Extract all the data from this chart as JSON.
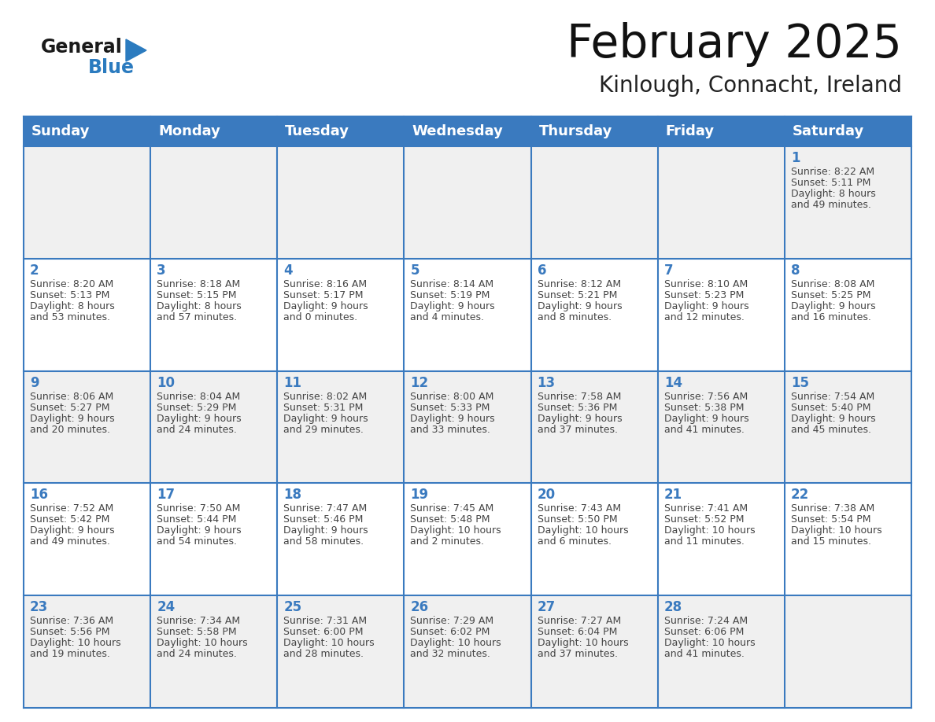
{
  "title": "February 2025",
  "subtitle": "Kinlough, Connacht, Ireland",
  "header_color": "#3a7abf",
  "header_text_color": "#ffffff",
  "cell_bg_white": "#ffffff",
  "cell_bg_gray": "#f0f0f0",
  "border_color": "#3a7abf",
  "text_color": "#444444",
  "day_num_color": "#3a7abf",
  "days_of_week": [
    "Sunday",
    "Monday",
    "Tuesday",
    "Wednesday",
    "Thursday",
    "Friday",
    "Saturday"
  ],
  "weeks": [
    [
      {
        "day": "",
        "info": ""
      },
      {
        "day": "",
        "info": ""
      },
      {
        "day": "",
        "info": ""
      },
      {
        "day": "",
        "info": ""
      },
      {
        "day": "",
        "info": ""
      },
      {
        "day": "",
        "info": ""
      },
      {
        "day": "1",
        "info": "Sunrise: 8:22 AM\nSunset: 5:11 PM\nDaylight: 8 hours\nand 49 minutes."
      }
    ],
    [
      {
        "day": "2",
        "info": "Sunrise: 8:20 AM\nSunset: 5:13 PM\nDaylight: 8 hours\nand 53 minutes."
      },
      {
        "day": "3",
        "info": "Sunrise: 8:18 AM\nSunset: 5:15 PM\nDaylight: 8 hours\nand 57 minutes."
      },
      {
        "day": "4",
        "info": "Sunrise: 8:16 AM\nSunset: 5:17 PM\nDaylight: 9 hours\nand 0 minutes."
      },
      {
        "day": "5",
        "info": "Sunrise: 8:14 AM\nSunset: 5:19 PM\nDaylight: 9 hours\nand 4 minutes."
      },
      {
        "day": "6",
        "info": "Sunrise: 8:12 AM\nSunset: 5:21 PM\nDaylight: 9 hours\nand 8 minutes."
      },
      {
        "day": "7",
        "info": "Sunrise: 8:10 AM\nSunset: 5:23 PM\nDaylight: 9 hours\nand 12 minutes."
      },
      {
        "day": "8",
        "info": "Sunrise: 8:08 AM\nSunset: 5:25 PM\nDaylight: 9 hours\nand 16 minutes."
      }
    ],
    [
      {
        "day": "9",
        "info": "Sunrise: 8:06 AM\nSunset: 5:27 PM\nDaylight: 9 hours\nand 20 minutes."
      },
      {
        "day": "10",
        "info": "Sunrise: 8:04 AM\nSunset: 5:29 PM\nDaylight: 9 hours\nand 24 minutes."
      },
      {
        "day": "11",
        "info": "Sunrise: 8:02 AM\nSunset: 5:31 PM\nDaylight: 9 hours\nand 29 minutes."
      },
      {
        "day": "12",
        "info": "Sunrise: 8:00 AM\nSunset: 5:33 PM\nDaylight: 9 hours\nand 33 minutes."
      },
      {
        "day": "13",
        "info": "Sunrise: 7:58 AM\nSunset: 5:36 PM\nDaylight: 9 hours\nand 37 minutes."
      },
      {
        "day": "14",
        "info": "Sunrise: 7:56 AM\nSunset: 5:38 PM\nDaylight: 9 hours\nand 41 minutes."
      },
      {
        "day": "15",
        "info": "Sunrise: 7:54 AM\nSunset: 5:40 PM\nDaylight: 9 hours\nand 45 minutes."
      }
    ],
    [
      {
        "day": "16",
        "info": "Sunrise: 7:52 AM\nSunset: 5:42 PM\nDaylight: 9 hours\nand 49 minutes."
      },
      {
        "day": "17",
        "info": "Sunrise: 7:50 AM\nSunset: 5:44 PM\nDaylight: 9 hours\nand 54 minutes."
      },
      {
        "day": "18",
        "info": "Sunrise: 7:47 AM\nSunset: 5:46 PM\nDaylight: 9 hours\nand 58 minutes."
      },
      {
        "day": "19",
        "info": "Sunrise: 7:45 AM\nSunset: 5:48 PM\nDaylight: 10 hours\nand 2 minutes."
      },
      {
        "day": "20",
        "info": "Sunrise: 7:43 AM\nSunset: 5:50 PM\nDaylight: 10 hours\nand 6 minutes."
      },
      {
        "day": "21",
        "info": "Sunrise: 7:41 AM\nSunset: 5:52 PM\nDaylight: 10 hours\nand 11 minutes."
      },
      {
        "day": "22",
        "info": "Sunrise: 7:38 AM\nSunset: 5:54 PM\nDaylight: 10 hours\nand 15 minutes."
      }
    ],
    [
      {
        "day": "23",
        "info": "Sunrise: 7:36 AM\nSunset: 5:56 PM\nDaylight: 10 hours\nand 19 minutes."
      },
      {
        "day": "24",
        "info": "Sunrise: 7:34 AM\nSunset: 5:58 PM\nDaylight: 10 hours\nand 24 minutes."
      },
      {
        "day": "25",
        "info": "Sunrise: 7:31 AM\nSunset: 6:00 PM\nDaylight: 10 hours\nand 28 minutes."
      },
      {
        "day": "26",
        "info": "Sunrise: 7:29 AM\nSunset: 6:02 PM\nDaylight: 10 hours\nand 32 minutes."
      },
      {
        "day": "27",
        "info": "Sunrise: 7:27 AM\nSunset: 6:04 PM\nDaylight: 10 hours\nand 37 minutes."
      },
      {
        "day": "28",
        "info": "Sunrise: 7:24 AM\nSunset: 6:06 PM\nDaylight: 10 hours\nand 41 minutes."
      },
      {
        "day": "",
        "info": ""
      }
    ]
  ],
  "logo_text1": "General",
  "logo_text2": "Blue",
  "logo_color1": "#1a1a1a",
  "logo_color2": "#2b7bbf",
  "title_fontsize": 42,
  "subtitle_fontsize": 20,
  "header_fontsize": 13,
  "day_num_fontsize": 12,
  "info_fontsize": 9
}
